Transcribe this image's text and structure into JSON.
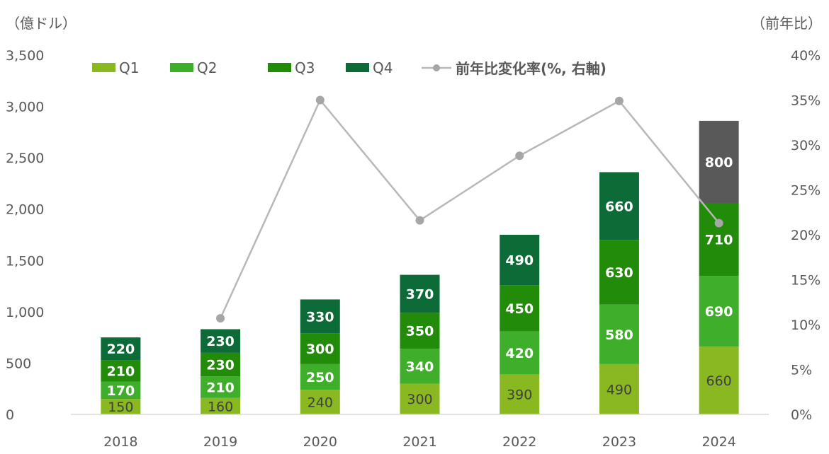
{
  "chart_data": {
    "type": "bar",
    "stacked": true,
    "left_axis_label": "（億ドル）",
    "right_axis_label": "（前年比）",
    "categories": [
      "2018",
      "2019",
      "2020",
      "2021",
      "2022",
      "2023",
      "2024"
    ],
    "ylim": [
      0,
      3500
    ],
    "y_ticks": [
      "0",
      "500",
      "1,000",
      "1,500",
      "2,000",
      "2,500",
      "3,000",
      "3,500"
    ],
    "y2lim": [
      0,
      40
    ],
    "y2_ticks": [
      "0%",
      "5%",
      "10%",
      "15%",
      "20%",
      "25%",
      "30%",
      "35%",
      "40%"
    ],
    "legend_position": "top",
    "series": [
      {
        "name": "Q1",
        "color": "#8ab820",
        "label_color": "#404040",
        "values": [
          150,
          160,
          240,
          300,
          390,
          490,
          660
        ]
      },
      {
        "name": "Q2",
        "color": "#3fae2a",
        "label_color": "#ffffff",
        "values": [
          170,
          210,
          250,
          340,
          420,
          580,
          690
        ]
      },
      {
        "name": "Q3",
        "color": "#228b0a",
        "label_color": "#ffffff",
        "values": [
          210,
          230,
          300,
          350,
          450,
          630,
          710
        ]
      },
      {
        "name": "Q4",
        "color": "#0d6b38",
        "label_color": "#ffffff",
        "values": [
          220,
          230,
          330,
          370,
          490,
          660,
          800
        ],
        "highlight": {
          "index": 6,
          "color": "#595959"
        }
      }
    ],
    "line_series": {
      "name": "前年比変化率(%, 右軸)",
      "color": "#b8b8b8",
      "axis": "right",
      "values": [
        null,
        10.7,
        35.0,
        21.6,
        28.8,
        34.9,
        21.3
      ]
    }
  }
}
